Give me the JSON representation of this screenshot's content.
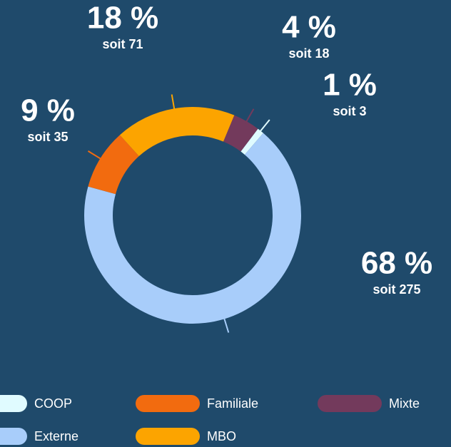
{
  "chart_data": {
    "type": "donut",
    "categories": [
      "COOP",
      "Externe",
      "Familiale",
      "MBO",
      "Mixte"
    ],
    "values": [
      1,
      68,
      9,
      18,
      4
    ],
    "value_labels": [
      "1 %",
      "68 %",
      "9 %",
      "18 %",
      "4 %"
    ],
    "counts": [
      3,
      275,
      35,
      71,
      18
    ],
    "count_labels": [
      "soit 3",
      "soit 275",
      "soit 35",
      "soit 71",
      "soit 18"
    ],
    "colors": [
      "#e0fbff",
      "#a8cdfa",
      "#f26b0f",
      "#fca400",
      "#733a5c"
    ]
  }
}
